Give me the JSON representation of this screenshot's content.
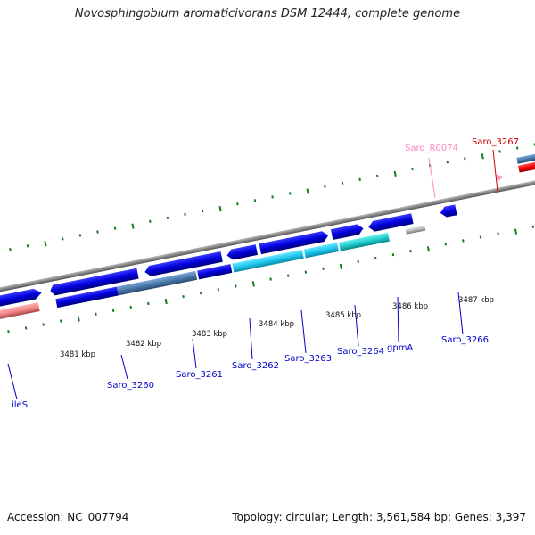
{
  "title": "Novosphingobium aromaticivorans DSM 12444, complete genome",
  "footer": {
    "accession": "Accession: NC_007794",
    "summary": "Topology: circular; Length: 3,561,584 bp; Genes: 3,397"
  },
  "ticks": [
    "3481 kbp",
    "3482 kbp",
    "3483 kbp",
    "3484 kbp",
    "3485 kbp",
    "3486 kbp",
    "3487 kbp"
  ],
  "genes": [
    {
      "label": "ileS",
      "color": "#0000cc"
    },
    {
      "label": "Saro_3260",
      "color": "#0000cc"
    },
    {
      "label": "Saro_3261",
      "color": "#0000cc"
    },
    {
      "label": "Saro_3262",
      "color": "#0000cc"
    },
    {
      "label": "Saro_3263",
      "color": "#0000cc"
    },
    {
      "label": "Saro_3264",
      "color": "#0000cc"
    },
    {
      "label": "gpmA",
      "color": "#0000cc"
    },
    {
      "label": "Saro_3266",
      "color": "#0000cc"
    },
    {
      "label": "Saro_R0074",
      "color": "#ff88c0"
    },
    {
      "label": "Saro_3267",
      "color": "#cc0000"
    }
  ],
  "colors": {
    "backbone": "#888888",
    "cds": "#0000ee",
    "cog_steel": "#4a7aaa",
    "cog_cyan": "#22ccee",
    "cog_teal": "#22cccc",
    "cog_pink": "#ee8888",
    "cog_grey": "#bbbbbb",
    "rna": "#ff99cc",
    "red_cds": "#ee0000",
    "tick": "#1a7a1a"
  }
}
